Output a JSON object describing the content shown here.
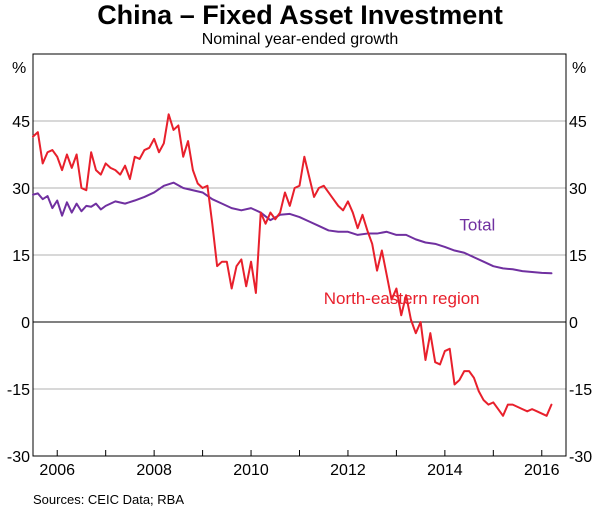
{
  "chart_data": {
    "type": "line",
    "title": "China – Fixed Asset Investment",
    "subtitle": "Nominal year-ended growth",
    "ylabel_left": "%",
    "ylabel_right": "%",
    "ylim": [
      -30,
      60
    ],
    "yticks": [
      -30,
      -15,
      0,
      15,
      30,
      45
    ],
    "xlim": [
      2005.5,
      2016.5
    ],
    "xticks": [
      2006,
      2008,
      2010,
      2012,
      2014,
      2016
    ],
    "grid": true,
    "series": [
      {
        "name": "Total",
        "color": "#7030a0",
        "label": "Total",
        "x": [
          2005.5,
          2005.6,
          2005.7,
          2005.8,
          2005.9,
          2006.0,
          2006.1,
          2006.2,
          2006.3,
          2006.4,
          2006.5,
          2006.6,
          2006.7,
          2006.8,
          2006.9,
          2007.0,
          2007.2,
          2007.4,
          2007.6,
          2007.8,
          2008.0,
          2008.2,
          2008.4,
          2008.6,
          2008.8,
          2009.0,
          2009.2,
          2009.4,
          2009.6,
          2009.8,
          2010.0,
          2010.2,
          2010.4,
          2010.6,
          2010.8,
          2011.0,
          2011.2,
          2011.4,
          2011.6,
          2011.8,
          2012.0,
          2012.2,
          2012.4,
          2012.6,
          2012.8,
          2013.0,
          2013.2,
          2013.4,
          2013.6,
          2013.8,
          2014.0,
          2014.2,
          2014.4,
          2014.6,
          2014.8,
          2015.0,
          2015.2,
          2015.4,
          2015.6,
          2015.8,
          2016.0,
          2016.2
        ],
        "values": [
          28.5,
          28.8,
          27.5,
          28.2,
          25.5,
          27.2,
          23.8,
          26.8,
          24.5,
          26.5,
          24.8,
          26.0,
          25.8,
          26.5,
          25.2,
          26.0,
          27.0,
          26.5,
          27.2,
          28.0,
          29.0,
          30.5,
          31.2,
          30.0,
          29.5,
          29.0,
          27.5,
          26.5,
          25.5,
          25.0,
          25.5,
          24.5,
          22.8,
          24.0,
          24.2,
          23.5,
          22.5,
          21.5,
          20.5,
          20.2,
          20.2,
          19.5,
          19.8,
          19.8,
          20.2,
          19.5,
          19.5,
          18.5,
          17.8,
          17.5,
          16.8,
          16.0,
          15.5,
          14.5,
          13.5,
          12.5,
          12.0,
          11.8,
          11.4,
          11.2,
          11.0,
          10.9
        ],
        "label_at": [
          2014.3,
          20.5
        ]
      },
      {
        "name": "North-eastern region",
        "color": "#e8202c",
        "label": "North-eastern region",
        "x": [
          2005.5,
          2005.6,
          2005.7,
          2005.8,
          2005.9,
          2006.0,
          2006.1,
          2006.2,
          2006.3,
          2006.4,
          2006.5,
          2006.6,
          2006.7,
          2006.8,
          2006.9,
          2007.0,
          2007.1,
          2007.2,
          2007.3,
          2007.4,
          2007.5,
          2007.6,
          2007.7,
          2007.8,
          2007.9,
          2008.0,
          2008.1,
          2008.2,
          2008.3,
          2008.4,
          2008.5,
          2008.6,
          2008.7,
          2008.8,
          2008.9,
          2009.0,
          2009.1,
          2009.2,
          2009.3,
          2009.4,
          2009.5,
          2009.6,
          2009.7,
          2009.8,
          2009.9,
          2010.0,
          2010.1,
          2010.2,
          2010.3,
          2010.4,
          2010.5,
          2010.6,
          2010.7,
          2010.8,
          2010.9,
          2011.0,
          2011.1,
          2011.2,
          2011.3,
          2011.4,
          2011.5,
          2011.6,
          2011.7,
          2011.8,
          2011.9,
          2012.0,
          2012.1,
          2012.2,
          2012.3,
          2012.4,
          2012.5,
          2012.6,
          2012.7,
          2012.8,
          2012.9,
          2013.0,
          2013.1,
          2013.2,
          2013.3,
          2013.4,
          2013.5,
          2013.6,
          2013.7,
          2013.8,
          2013.9,
          2014.0,
          2014.1,
          2014.2,
          2014.3,
          2014.4,
          2014.5,
          2014.6,
          2014.7,
          2014.8,
          2014.9,
          2015.0,
          2015.1,
          2015.2,
          2015.3,
          2015.4,
          2015.5,
          2015.6,
          2015.7,
          2015.8,
          2015.9,
          2016.0,
          2016.1,
          2016.2
        ],
        "values": [
          41.5,
          42.5,
          35.5,
          38.0,
          38.5,
          37.0,
          34.0,
          37.5,
          34.5,
          37.5,
          30.0,
          29.5,
          38.0,
          34.0,
          33.0,
          35.5,
          34.5,
          34.0,
          33.0,
          35.0,
          32.0,
          37.0,
          36.5,
          38.5,
          39.0,
          41.0,
          38.0,
          40.0,
          46.5,
          43.0,
          44.0,
          37.0,
          40.5,
          34.0,
          31.0,
          30.0,
          30.5,
          22.0,
          12.5,
          13.5,
          13.5,
          7.5,
          12.5,
          14.0,
          8.0,
          13.5,
          6.5,
          24.5,
          22.0,
          24.5,
          23.0,
          24.5,
          29.0,
          26.0,
          30.0,
          30.5,
          37.0,
          32.5,
          28.0,
          30.0,
          30.5,
          29.0,
          27.5,
          26.0,
          25.0,
          27.0,
          24.5,
          21.0,
          24.0,
          20.5,
          17.5,
          11.5,
          16.0,
          10.5,
          5.0,
          7.5,
          1.5,
          6.0,
          0.5,
          -2.5,
          0.0,
          -8.5,
          -2.5,
          -9.0,
          -9.5,
          -6.5,
          -6.0,
          -14.0,
          -13.0,
          -11.0,
          -11.0,
          -12.5,
          -15.5,
          -17.5,
          -18.5,
          -18.0,
          -19.5,
          -21.0,
          -18.5,
          -18.5,
          -19.0,
          -19.5,
          -20.0,
          -19.5,
          -20.0,
          -20.5,
          -21.0,
          -18.5
        ],
        "label_at": [
          2011.5,
          4.0
        ]
      }
    ]
  },
  "source": "Sources:   CEIC Data; RBA"
}
